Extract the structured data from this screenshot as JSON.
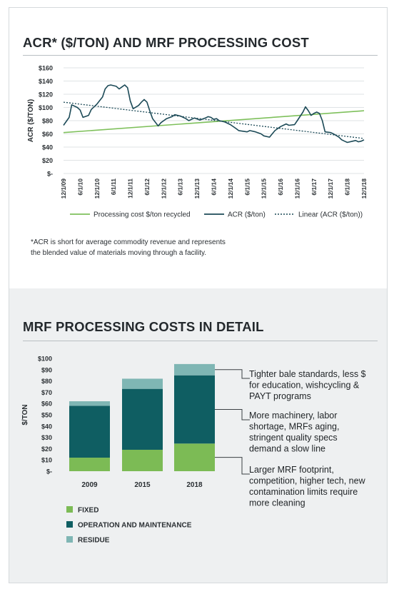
{
  "heading_top": "ACR* ($/TON) AND MRF PROCESSING COST",
  "heading_bottom": "MRF PROCESSING COSTS IN DETAIL",
  "footnote": {
    "line1": "*ACR is short for average commodity revenue and represents",
    "line2": "the blended value of materials moving through a facility."
  },
  "colors": {
    "acr_line": "#1c4a57",
    "processing_line": "#7ec05b",
    "linear_trend": "#1c4a57",
    "fixed": "#7cbb55",
    "operation": "#0f5e62",
    "residue": "#7fb6b4"
  },
  "chart_data": [
    {
      "type": "line",
      "title": "ACR* ($/TON) AND MRF PROCESSING COST",
      "ylabel": "ACR ($/TON)",
      "xlabel": "",
      "ylim": [
        0,
        160
      ],
      "y_ticks": [
        0,
        20,
        40,
        60,
        80,
        100,
        120,
        140,
        160
      ],
      "y_tick_labels": [
        "$-",
        "$20",
        "$40",
        "$60",
        "$80",
        "$100",
        "$120",
        "$140",
        "$160"
      ],
      "x_range": [
        "12/1/09",
        "12/1/18"
      ],
      "x_tick_labels": [
        "12/1/09",
        "6/1/10",
        "12/1/10",
        "6/1/11",
        "12/1/11",
        "6/1/12",
        "12/1/12",
        "6/1/13",
        "12/1/13",
        "6/1/14",
        "12/1/14",
        "6/1/15",
        "12/1/15",
        "6/1/16",
        "12/1/16",
        "6/1/17",
        "12/1/17",
        "6/1/18",
        "12/1/18"
      ],
      "grid": true,
      "legend_position": "bottom",
      "series": [
        {
          "name": "Processing cost $/ton recycled",
          "points": [
            [
              "12/1/09",
              62
            ],
            [
              "12/1/18",
              95
            ]
          ]
        },
        {
          "name": "ACR ($/ton)",
          "points": [
            [
              "12/1/09",
              73
            ],
            [
              "2/1/10",
              85
            ],
            [
              "3/1/10",
              104
            ],
            [
              "5/1/10",
              100
            ],
            [
              "6/1/10",
              96
            ],
            [
              "7/1/10",
              85
            ],
            [
              "9/1/10",
              88
            ],
            [
              "10/1/10",
              97
            ],
            [
              "12/1/10",
              105
            ],
            [
              "2/1/11",
              116
            ],
            [
              "3/1/11",
              128
            ],
            [
              "4/1/11",
              133
            ],
            [
              "5/1/11",
              134
            ],
            [
              "7/1/11",
              132
            ],
            [
              "8/1/11",
              128
            ],
            [
              "9/1/11",
              131
            ],
            [
              "10/1/11",
              134
            ],
            [
              "11/1/11",
              130
            ],
            [
              "12/1/11",
              110
            ],
            [
              "1/1/12",
              98
            ],
            [
              "3/1/12",
              103
            ],
            [
              "4/1/12",
              108
            ],
            [
              "5/1/12",
              112
            ],
            [
              "6/1/12",
              108
            ],
            [
              "7/1/12",
              95
            ],
            [
              "8/1/12",
              83
            ],
            [
              "10/1/12",
              72
            ],
            [
              "11/1/12",
              77
            ],
            [
              "12/1/12",
              80
            ],
            [
              "1/1/13",
              83
            ],
            [
              "3/1/13",
              86
            ],
            [
              "4/1/13",
              89
            ],
            [
              "6/1/13",
              87
            ],
            [
              "8/1/13",
              83
            ],
            [
              "9/1/13",
              80
            ],
            [
              "10/1/13",
              82
            ],
            [
              "11/1/13",
              84
            ],
            [
              "1/1/14",
              81
            ],
            [
              "3/1/14",
              84
            ],
            [
              "4/1/14",
              86
            ],
            [
              "5/1/14",
              85
            ],
            [
              "6/1/14",
              82
            ],
            [
              "7/1/14",
              83
            ],
            [
              "8/1/14",
              80
            ],
            [
              "10/1/14",
              78
            ],
            [
              "12/1/14",
              74
            ],
            [
              "2/1/15",
              68
            ],
            [
              "3/1/15",
              65
            ],
            [
              "6/1/15",
              63
            ],
            [
              "7/1/15",
              65
            ],
            [
              "9/1/15",
              63
            ],
            [
              "11/1/15",
              60
            ],
            [
              "12/1/15",
              57
            ],
            [
              "2/1/16",
              55
            ],
            [
              "4/1/16",
              65
            ],
            [
              "5/1/16",
              68
            ],
            [
              "6/1/16",
              71
            ],
            [
              "7/1/16",
              73
            ],
            [
              "8/1/16",
              75
            ],
            [
              "9/1/16",
              73
            ],
            [
              "11/1/16",
              74
            ],
            [
              "12/1/16",
              80
            ],
            [
              "2/1/17",
              93
            ],
            [
              "3/1/17",
              101
            ],
            [
              "4/1/17",
              95
            ],
            [
              "5/1/17",
              88
            ],
            [
              "6/1/17",
              91
            ],
            [
              "7/1/17",
              93
            ],
            [
              "8/1/17",
              91
            ],
            [
              "9/1/17",
              80
            ],
            [
              "10/1/17",
              63
            ],
            [
              "12/1/17",
              62
            ],
            [
              "1/1/18",
              60
            ],
            [
              "3/1/18",
              55
            ],
            [
              "4/1/18",
              51
            ],
            [
              "5/1/18",
              49
            ],
            [
              "6/1/18",
              47
            ],
            [
              "8/1/18",
              49
            ],
            [
              "9/1/18",
              50
            ],
            [
              "10/1/18",
              48
            ],
            [
              "11/1/18",
              49
            ],
            [
              "12/1/18",
              51
            ]
          ]
        },
        {
          "name": "Linear (ACR ($/ton))",
          "points": [
            [
              "12/1/09",
              108
            ],
            [
              "12/1/18",
              53
            ]
          ]
        }
      ]
    },
    {
      "type": "bar",
      "title": "MRF PROCESSING COSTS IN DETAIL",
      "ylabel": "$/TON",
      "xlabel": "",
      "ylim": [
        0,
        100
      ],
      "y_ticks": [
        0,
        10,
        20,
        30,
        40,
        50,
        60,
        70,
        80,
        90,
        100
      ],
      "y_tick_labels": [
        "$-",
        "$10",
        "$20",
        "$30",
        "$40",
        "$50",
        "$60",
        "$70",
        "$80",
        "$90",
        "$100"
      ],
      "categories": [
        "2009",
        "2015",
        "2018"
      ],
      "stacked": true,
      "legend_position": "bottom-left",
      "series": [
        {
          "name": "FIXED",
          "values": [
            12,
            19,
            24.5
          ]
        },
        {
          "name": "OPERATION AND MAINTENANCE",
          "values": [
            46,
            54,
            60.5
          ]
        },
        {
          "name": "RESIDUE",
          "values": [
            4,
            9,
            10
          ]
        }
      ],
      "annotations": [
        {
          "lines": [
            "Tighter bale standards, less $",
            "for education, wishcycling &",
            "PAYT programs"
          ]
        },
        {
          "lines": [
            "More machinery, labor",
            "shortage, MRFs aging,",
            "stringent quality specs",
            "demand a slow line"
          ]
        },
        {
          "lines": [
            "Larger MRF footprint,",
            "competition, higher tech, new",
            "contamination limits require",
            "more cleaning"
          ]
        }
      ]
    }
  ]
}
